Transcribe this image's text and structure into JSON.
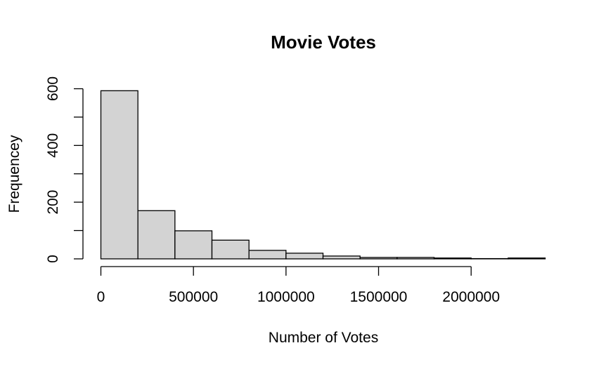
{
  "chart_data": {
    "type": "bar",
    "title": "Movie Votes",
    "xlabel": "Number of Votes",
    "ylabel": "Frequencey",
    "bin_edges": [
      0,
      200000,
      400000,
      600000,
      800000,
      1000000,
      1200000,
      1400000,
      1600000,
      1800000,
      2000000,
      2200000,
      2400000
    ],
    "values": [
      593,
      170,
      99,
      66,
      30,
      20,
      10,
      5,
      5,
      3,
      1,
      3
    ],
    "xlim": [
      0,
      2400000
    ],
    "ylim": [
      0,
      600
    ],
    "x_ticks": [
      0,
      500000,
      1000000,
      1500000,
      2000000
    ],
    "x_tick_labels": [
      "0",
      "500000",
      "1000000",
      "1500000",
      "2000000"
    ],
    "y_ticks": [
      0,
      100,
      200,
      300,
      400,
      500,
      600
    ],
    "y_tick_labels": [
      "0",
      "200",
      "400",
      "600"
    ],
    "y_tick_label_values": [
      0,
      200,
      400,
      600
    ],
    "grid": false,
    "bar_color": "#d3d3d3",
    "edge_color": "#000000"
  }
}
